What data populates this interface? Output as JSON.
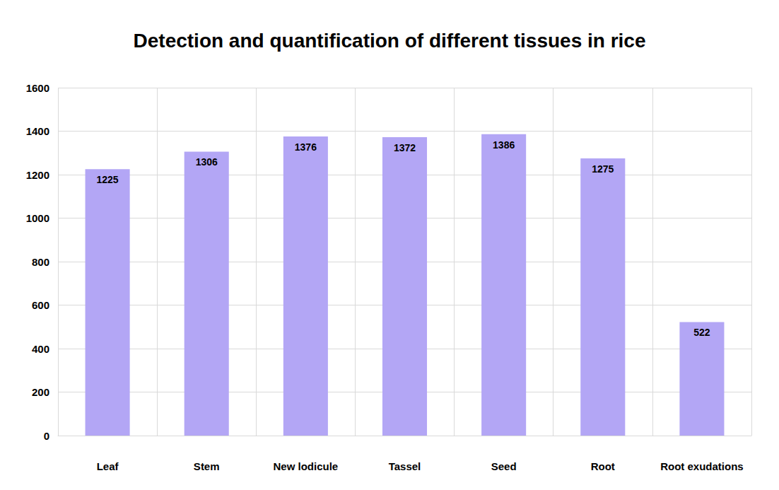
{
  "chart_data": {
    "type": "bar",
    "title": "Detection and quantification of different tissues in rice",
    "categories": [
      "Leaf",
      "Stem",
      "New lodicule",
      "Tassel",
      "Seed",
      "Root",
      "Root exudations"
    ],
    "values": [
      1225,
      1306,
      1376,
      1372,
      1386,
      1275,
      522
    ],
    "color": "#b3a6f5",
    "ylim": [
      0,
      1600
    ],
    "yticks": [
      0,
      200,
      400,
      600,
      800,
      1000,
      1200,
      1400,
      1600
    ],
    "grid": true,
    "data_labels": true
  }
}
